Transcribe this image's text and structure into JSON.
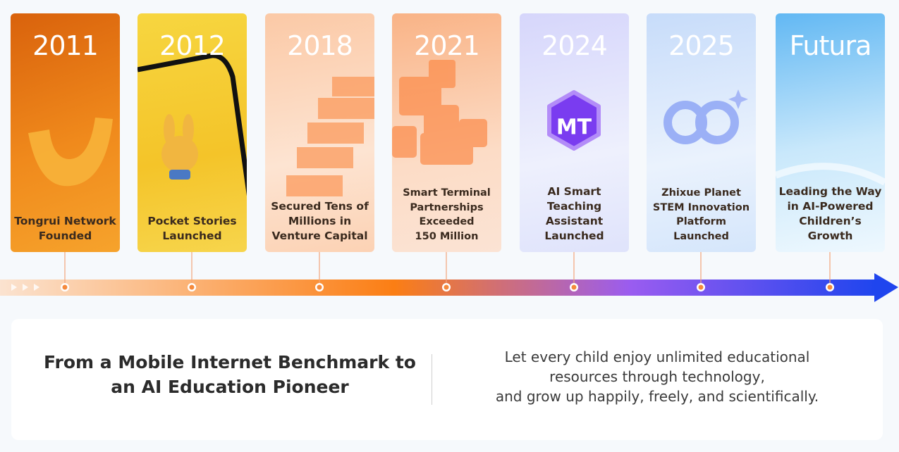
{
  "cards": [
    {
      "year": "2011",
      "caption": [
        "Tongrui Network",
        "Founded"
      ]
    },
    {
      "year": "2012",
      "caption": [
        "Pocket Stories",
        "Launched"
      ]
    },
    {
      "year": "2018",
      "caption": [
        "Secured Tens of",
        "Millions in",
        "Venture Capital"
      ]
    },
    {
      "year": "2021",
      "caption": [
        "Smart Terminal",
        "Partnerships",
        "Exceeded",
        "150 Million"
      ]
    },
    {
      "year": "2024",
      "logo": "MT",
      "caption": [
        "AI Smart",
        "Teaching",
        "Assistant Launched"
      ]
    },
    {
      "year": "2025",
      "caption": [
        "Zhixue Planet",
        "STEM Innovation",
        "Platform",
        "Launched"
      ]
    },
    {
      "year": "Futura",
      "caption": [
        "Leading the Way",
        "in AI-Powered",
        "Children’s Growth"
      ]
    }
  ],
  "panel": {
    "heading": [
      "From a Mobile Internet Benchmark to",
      "an AI Education Pioneer"
    ],
    "tagline": [
      "Let every child enjoy unlimited educational",
      "resources through technology,",
      "and grow up happily, freely, and scientifically."
    ]
  }
}
